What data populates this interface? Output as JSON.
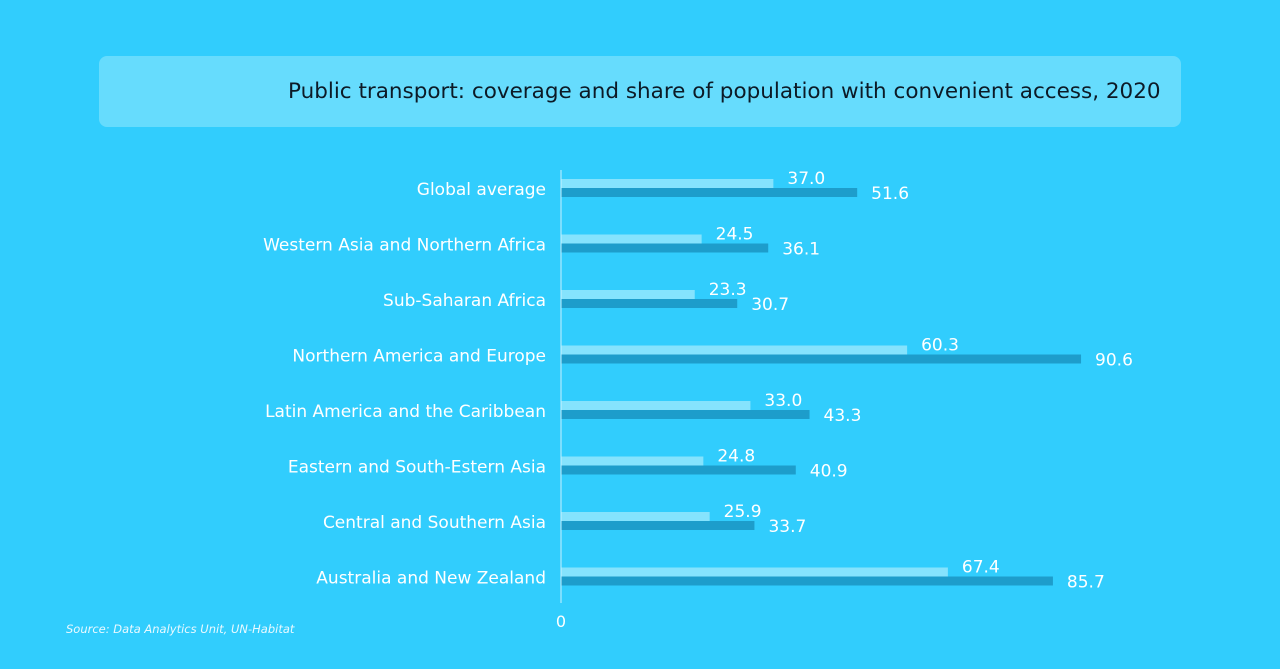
{
  "header": {
    "title": "Public transport: coverage and share of population with convenient access, 2020"
  },
  "footer": {
    "source": "Source: Data Analytics Unit, UN-Habitat"
  },
  "colors": {
    "background": "#31cdfd",
    "title_box": "#66dcfd",
    "series_light": "#85e3fd",
    "series_dark": "#1d9dcb",
    "text": "#ffffff"
  },
  "chart_data": {
    "type": "bar",
    "orientation": "horizontal",
    "title": "Public transport: coverage and share of population with convenient access, 2020",
    "categories": [
      "Global average",
      "Western Asia and Northern Africa",
      "Sub-Saharan Africa",
      "Northern America and Europe",
      "Latin America and the Caribbean",
      "Eastern and South-Estern Asia",
      "Central and Southern Asia",
      "Australia and New Zealand"
    ],
    "series": [
      {
        "color": "#85e3fd",
        "values": [
          37.0,
          24.5,
          23.3,
          60.3,
          33.0,
          24.8,
          25.9,
          67.4
        ],
        "labels": [
          "37.0",
          "24.5",
          "23.3",
          "60.3",
          "33.0",
          "24.8",
          "25.9",
          "67.4"
        ]
      },
      {
        "color": "#1d9dcb",
        "values": [
          51.6,
          36.1,
          30.7,
          90.6,
          43.3,
          40.9,
          33.7,
          85.7
        ],
        "labels": [
          "51.6",
          "36.1",
          "30.7",
          "90.6",
          "43.3",
          "40.9",
          "33.7",
          "85.7"
        ]
      }
    ],
    "xlim": [
      0,
      100
    ],
    "x_tick_labels": [
      "0"
    ],
    "grid": false,
    "legend": "none"
  }
}
